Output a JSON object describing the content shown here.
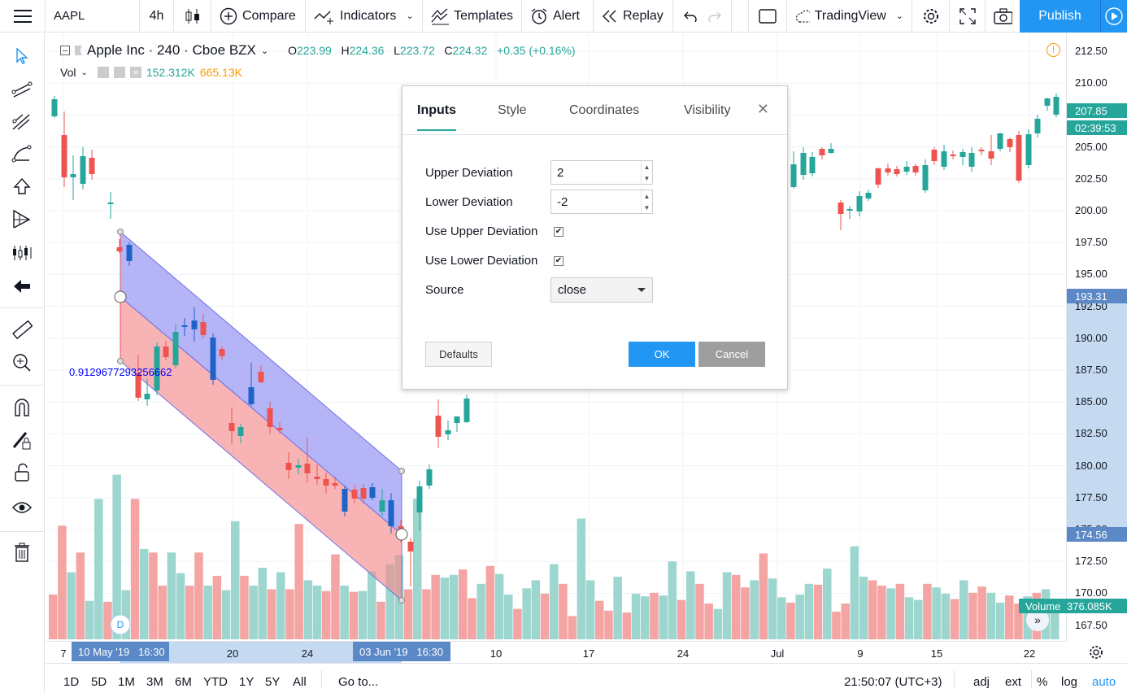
{
  "toolbar": {
    "symbol": "AAPL",
    "interval": "4h",
    "compare": "Compare",
    "indicators": "Indicators",
    "templates": "Templates",
    "alert": "Alert",
    "replay": "Replay",
    "layout_name": "TradingView",
    "publish": "Publish"
  },
  "legend": {
    "name": "Apple Inc · 240 · Cboe BZX",
    "o_label": "O",
    "o": "223.99",
    "h_label": "H",
    "h": "224.36",
    "l_label": "L",
    "l": "223.72",
    "c_label": "C",
    "c": "224.32",
    "change": "+0.35 (+0.16%)",
    "vol_label": "Vol",
    "vol_value_1": "152.312K",
    "vol_value_2": "665.13K"
  },
  "price_axis": {
    "ticks": [
      "212.50",
      "210.00",
      "207.50",
      "205.00",
      "202.50",
      "200.00",
      "197.50",
      "195.00",
      "192.50",
      "190.00",
      "187.50",
      "185.00",
      "182.50",
      "180.00",
      "177.50",
      "175.00",
      "172.50",
      "170.00",
      "167.50"
    ],
    "last_price": "207.85",
    "countdown": "02:39:53",
    "marker_upper": "193.31",
    "marker_lower": "174.56",
    "volume_label": "Volume",
    "volume_value": "376.085K"
  },
  "time_axis": {
    "ticks": [
      "7",
      "20",
      "24",
      "10",
      "17",
      "24",
      "Jul",
      "9",
      "15",
      "22"
    ],
    "start_label": "10 May '19   16:30",
    "end_label": "03 Jun '19   16:30"
  },
  "bottombar": {
    "ranges": [
      "1D",
      "5D",
      "1M",
      "3M",
      "6M",
      "YTD",
      "1Y",
      "5Y",
      "All"
    ],
    "goto": "Go to...",
    "clock": "21:50:07 (UTC+3)",
    "adj": "adj",
    "ext": "ext",
    "percent": "%",
    "log": "log",
    "auto": "auto"
  },
  "drawing": {
    "pearson_label": "0.9129677293256662"
  },
  "dialog": {
    "tabs": [
      "Inputs",
      "Style",
      "Coordinates",
      "Visibility"
    ],
    "active_tab": "Inputs",
    "upper_deviation_label": "Upper Deviation",
    "upper_deviation": "2",
    "lower_deviation_label": "Lower Deviation",
    "lower_deviation": "-2",
    "use_upper_label": "Use Upper Deviation",
    "use_upper": true,
    "use_lower_label": "Use Lower Deviation",
    "use_lower": true,
    "source_label": "Source",
    "source": "close",
    "defaults": "Defaults",
    "ok": "OK",
    "cancel": "Cancel"
  },
  "colors": {
    "up": "#26a69a",
    "down": "#ef5350",
    "accent": "#2196f3",
    "channel_upper": "#8c8cf2",
    "channel_lower": "#f48c8c"
  },
  "icons": [
    "menu-icon",
    "candles-icon",
    "compare-plus-icon",
    "indicators-icon",
    "templates-icon",
    "alarm-icon",
    "replay-icon",
    "undo-icon",
    "redo-icon",
    "rect-icon",
    "cloud-icon",
    "gear-icon",
    "fullscreen-icon",
    "camera-icon",
    "play-icon"
  ]
}
